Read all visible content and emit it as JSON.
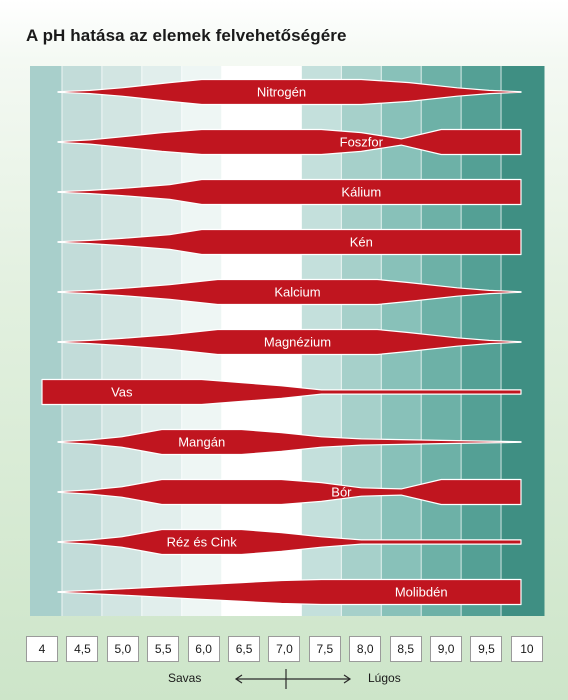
{
  "chart_data": {
    "type": "band",
    "title": "A pH hatása az elemek felvehetőségére",
    "x_ticks": [
      "4",
      "4,5",
      "5,0",
      "5,5",
      "6,0",
      "6,5",
      "7,0",
      "7,5",
      "8,0",
      "8,5",
      "9,0",
      "9,5",
      "10"
    ],
    "xlim": [
      4,
      10
    ],
    "grid": true,
    "direction": {
      "acid": "Savas",
      "base": "Lúgos"
    },
    "colors": {
      "band": "#c0151f",
      "band_outline": "#ffffff",
      "acid_background": [
        "#a8cfcb",
        "#c2dcd9",
        "#d2e5e2",
        "#e1eeec",
        "#eef6f4",
        "#ffffff"
      ],
      "base_background": [
        "#c4e0dc",
        "#a6d0ca",
        "#88c1b9",
        "#6db1a7",
        "#54a095",
        "#3f8f83"
      ]
    },
    "series": [
      {
        "name": "Nitrogén",
        "profile": [
          [
            4.2,
            0.3
          ],
          [
            4.6,
            1.5
          ],
          [
            5.0,
            4.0
          ],
          [
            5.6,
            9.0
          ],
          [
            6.0,
            12.0
          ],
          [
            8.0,
            12.0
          ],
          [
            8.6,
            9.0
          ],
          [
            9.2,
            4.0
          ],
          [
            9.6,
            1.5
          ],
          [
            10.0,
            0.3
          ]
        ]
      },
      {
        "name": "Foszfor",
        "profile": [
          [
            4.2,
            0.3
          ],
          [
            4.6,
            2.0
          ],
          [
            5.0,
            5.0
          ],
          [
            5.5,
            9.0
          ],
          [
            6.0,
            12.0
          ],
          [
            7.5,
            12.0
          ],
          [
            8.0,
            9.0
          ],
          [
            8.5,
            3.0
          ],
          [
            9.0,
            12.0
          ],
          [
            10.0,
            12.0
          ]
        ]
      },
      {
        "name": "Kálium",
        "profile": [
          [
            4.2,
            0.3
          ],
          [
            4.6,
            1.5
          ],
          [
            5.0,
            3.5
          ],
          [
            5.6,
            7.0
          ],
          [
            6.0,
            12.0
          ],
          [
            10.0,
            12.0
          ]
        ]
      },
      {
        "name": "Kén",
        "profile": [
          [
            4.2,
            0.3
          ],
          [
            4.6,
            1.5
          ],
          [
            5.0,
            3.5
          ],
          [
            5.6,
            7.0
          ],
          [
            6.0,
            12.0
          ],
          [
            10.0,
            12.0
          ]
        ]
      },
      {
        "name": "Kalcium",
        "profile": [
          [
            4.2,
            0.3
          ],
          [
            4.6,
            1.5
          ],
          [
            5.0,
            3.5
          ],
          [
            5.6,
            7.0
          ],
          [
            6.2,
            12.0
          ],
          [
            8.2,
            12.0
          ],
          [
            8.6,
            9.0
          ],
          [
            9.2,
            4.0
          ],
          [
            9.6,
            1.5
          ],
          [
            10.0,
            0.3
          ]
        ]
      },
      {
        "name": "Magnézium",
        "profile": [
          [
            4.2,
            0.3
          ],
          [
            4.6,
            1.5
          ],
          [
            5.0,
            3.5
          ],
          [
            5.6,
            7.0
          ],
          [
            6.2,
            12.0
          ],
          [
            8.2,
            12.0
          ],
          [
            8.6,
            9.0
          ],
          [
            9.2,
            4.0
          ],
          [
            9.6,
            1.5
          ],
          [
            10.0,
            0.3
          ]
        ]
      },
      {
        "name": "Vas",
        "profile": [
          [
            4.0,
            12.0
          ],
          [
            6.0,
            12.0
          ],
          [
            6.5,
            9.0
          ],
          [
            7.0,
            6.0
          ],
          [
            7.5,
            2.0
          ],
          [
            10.0,
            2.0
          ]
        ]
      },
      {
        "name": "Mangán",
        "profile": [
          [
            4.2,
            0.3
          ],
          [
            4.6,
            2.0
          ],
          [
            5.0,
            5.0
          ],
          [
            5.5,
            12.0
          ],
          [
            6.5,
            12.0
          ],
          [
            7.0,
            9.0
          ],
          [
            7.5,
            5.0
          ],
          [
            8.0,
            3.0
          ],
          [
            9.0,
            1.5
          ],
          [
            10.0,
            0.3
          ]
        ]
      },
      {
        "name": "Bór",
        "profile": [
          [
            4.2,
            0.3
          ],
          [
            4.6,
            2.0
          ],
          [
            5.0,
            5.0
          ],
          [
            5.5,
            12.0
          ],
          [
            7.0,
            12.0
          ],
          [
            7.5,
            9.0
          ],
          [
            8.0,
            4.0
          ],
          [
            8.5,
            3.0
          ],
          [
            9.0,
            12.0
          ],
          [
            10.0,
            12.0
          ]
        ]
      },
      {
        "name": "Réz és Cink",
        "profile": [
          [
            4.2,
            0.3
          ],
          [
            4.6,
            2.0
          ],
          [
            5.0,
            5.0
          ],
          [
            5.5,
            12.0
          ],
          [
            6.5,
            12.0
          ],
          [
            7.0,
            9.0
          ],
          [
            7.5,
            5.0
          ],
          [
            8.0,
            2.0
          ],
          [
            10.0,
            2.0
          ]
        ]
      },
      {
        "name": "Molibdén",
        "profile": [
          [
            4.2,
            0.3
          ],
          [
            4.6,
            1.5
          ],
          [
            5.0,
            3.0
          ],
          [
            5.5,
            5.0
          ],
          [
            6.0,
            7.0
          ],
          [
            6.5,
            9.0
          ],
          [
            7.0,
            11.0
          ],
          [
            7.5,
            12.0
          ],
          [
            10.0,
            12.0
          ]
        ]
      }
    ]
  }
}
